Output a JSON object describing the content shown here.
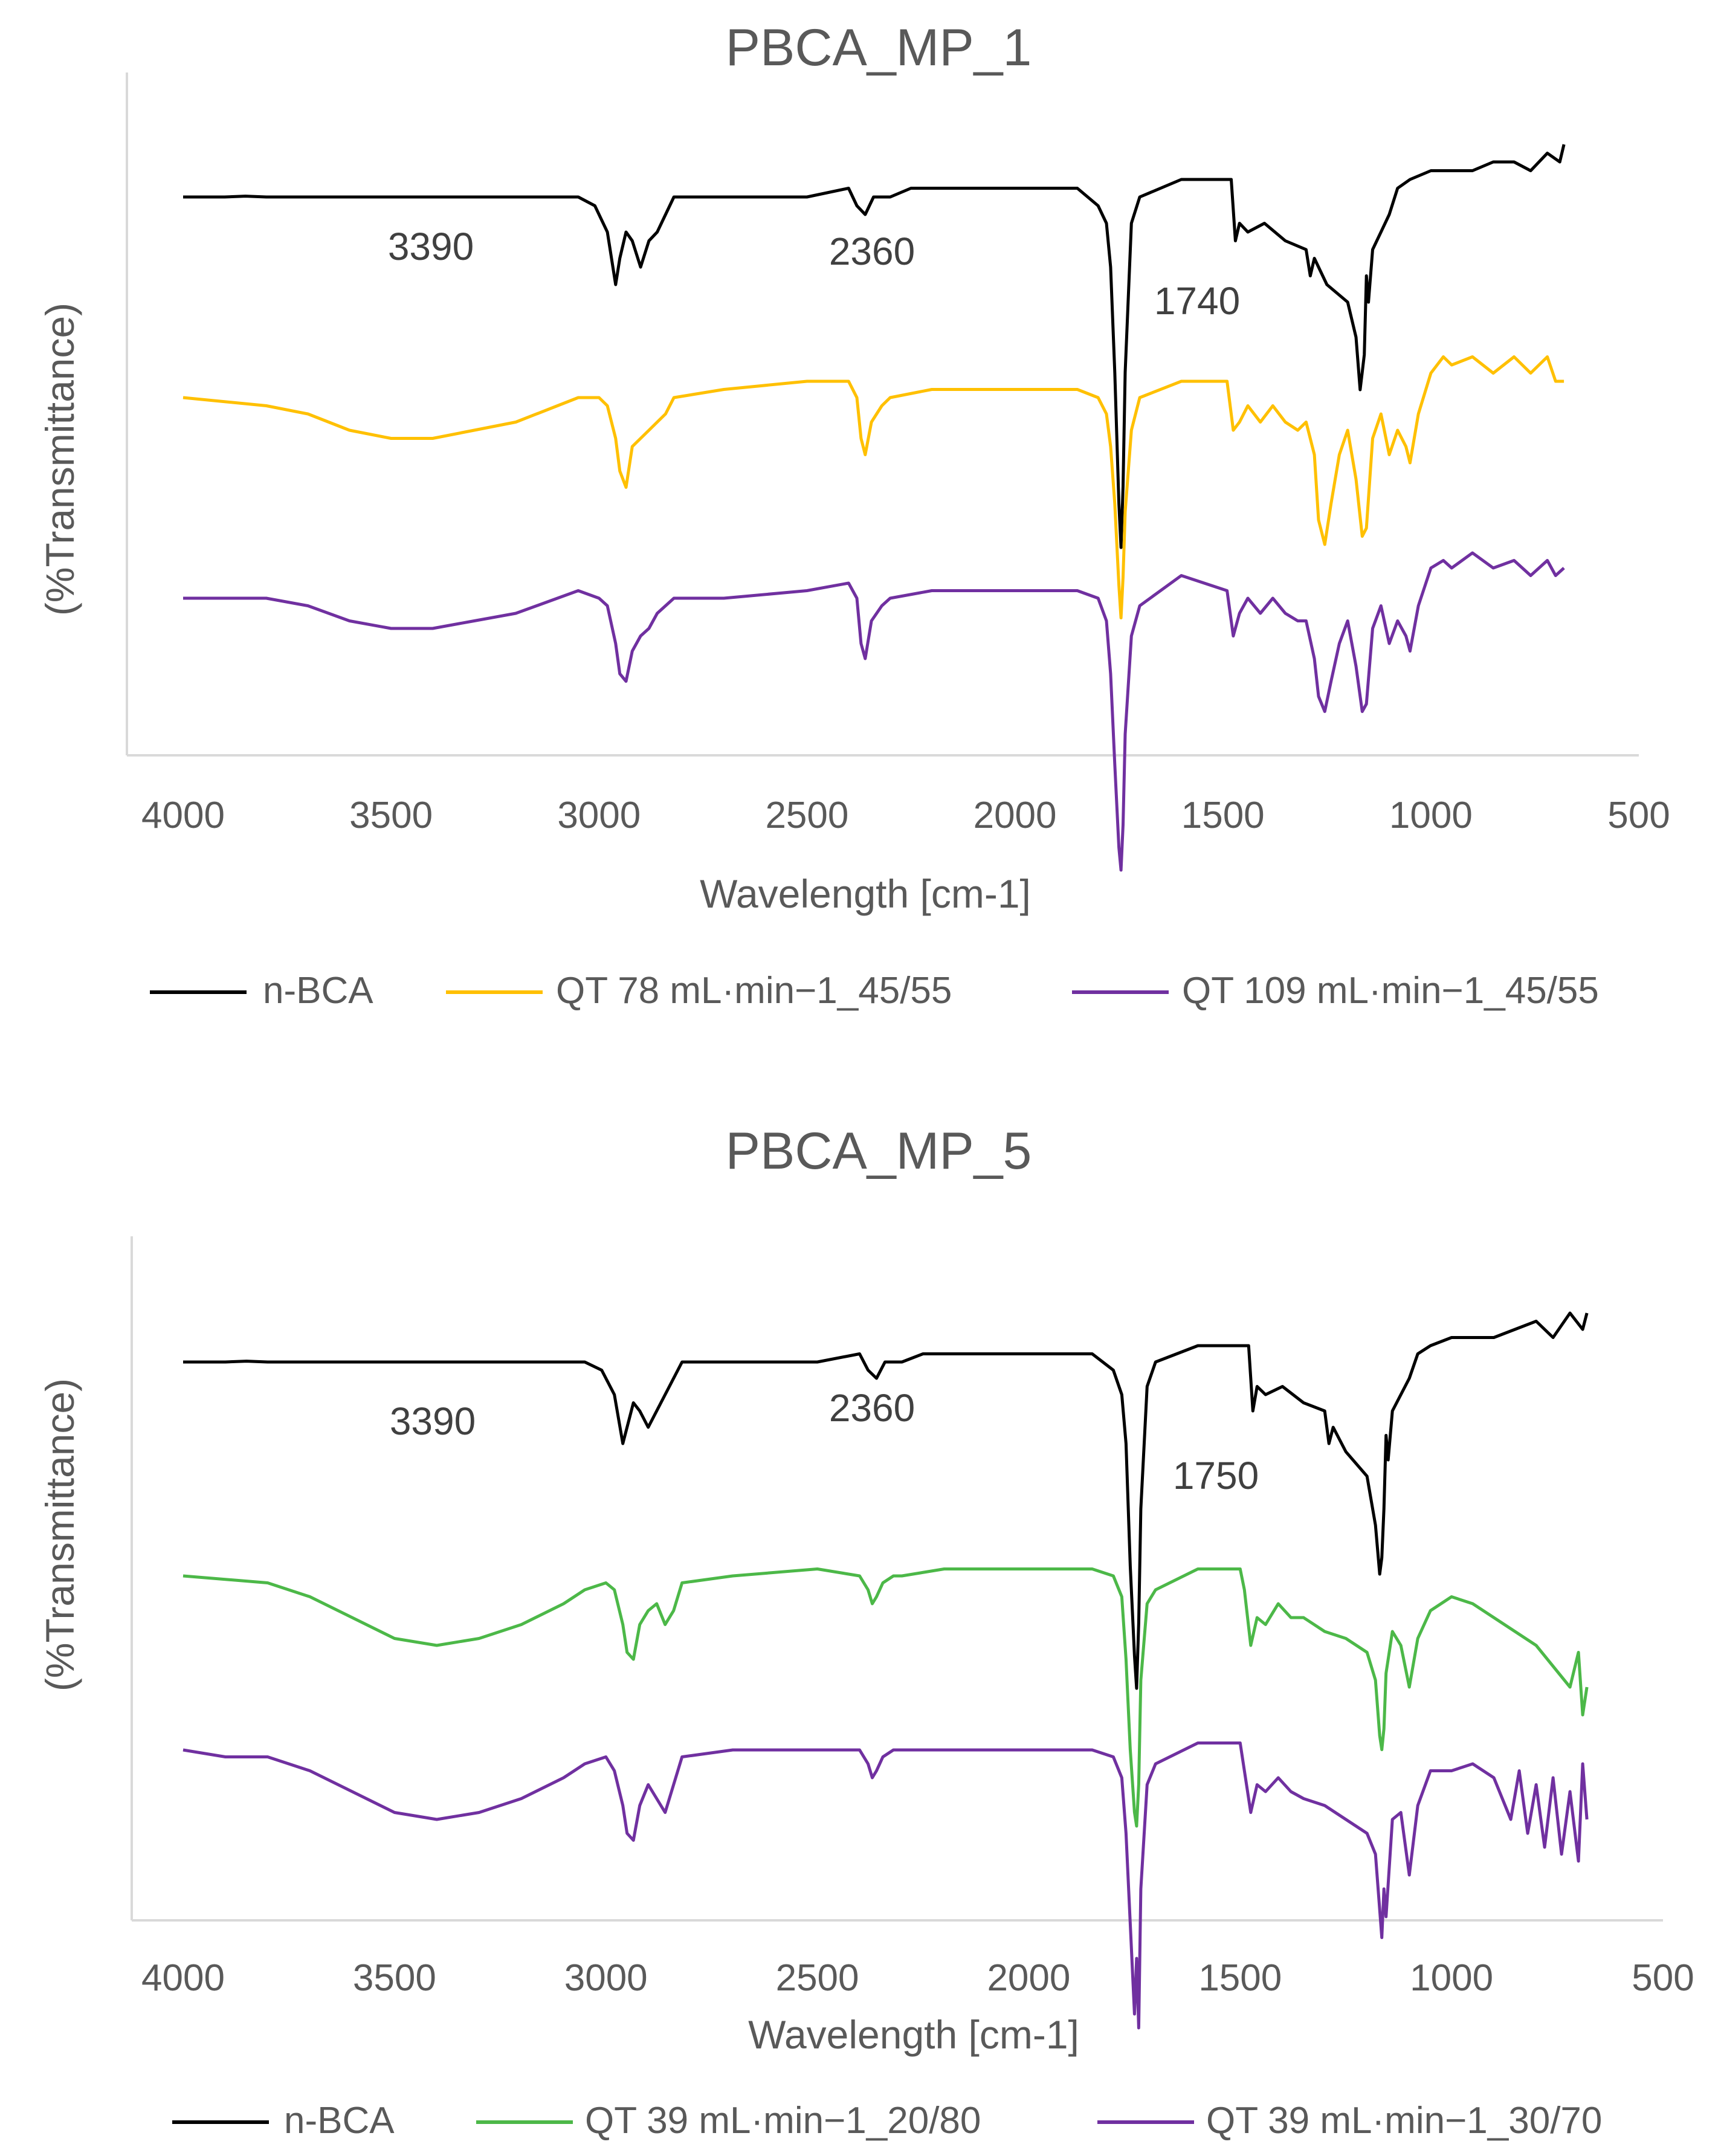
{
  "chart_data": [
    {
      "type": "line",
      "title": "PBCA_MP_1",
      "xlabel": "Wavelength [cm-1]",
      "ylabel": "(%Transmittance)",
      "xlim": [
        4000,
        500
      ],
      "xticks": [
        "4000",
        "3500",
        "3000",
        "2500",
        "2000",
        "1500",
        "1000",
        "500"
      ],
      "annotations": [
        {
          "text": "3390",
          "x": 3390
        },
        {
          "text": "2360",
          "x": 2360
        },
        {
          "text": "1740",
          "x": 1740
        }
      ],
      "series": [
        {
          "name": "n-BCA",
          "color": "#000000",
          "x": [
            4000,
            3900,
            3850,
            3800,
            3700,
            3500,
            3200,
            3050,
            3010,
            2980,
            2960,
            2950,
            2935,
            2920,
            2900,
            2880,
            2860,
            2840,
            2820,
            2700,
            2500,
            2400,
            2380,
            2360,
            2340,
            2300,
            2250,
            2200,
            2000,
            1850,
            1800,
            1780,
            1770,
            1760,
            1750,
            1745,
            1740,
            1735,
            1720,
            1700,
            1600,
            1480,
            1470,
            1460,
            1440,
            1400,
            1350,
            1300,
            1290,
            1280,
            1250,
            1200,
            1180,
            1170,
            1165,
            1160,
            1155,
            1150,
            1140,
            1120,
            1100,
            1080,
            1050,
            1000,
            950,
            900,
            850,
            800,
            760,
            720,
            690,
            680
          ],
          "y": [
            0,
            0,
            0.1,
            0,
            0,
            0,
            0,
            0,
            -1,
            -4,
            -10,
            -7,
            -4,
            -5,
            -8,
            -5,
            -4,
            -2,
            0,
            0,
            0,
            1,
            -1,
            -2,
            0,
            0,
            1,
            1,
            1,
            1,
            -1,
            -3,
            -8,
            -20,
            -35,
            -40,
            -33,
            -20,
            -3,
            0,
            2,
            2,
            -5,
            -3,
            -4,
            -3,
            -5,
            -6,
            -9,
            -7,
            -10,
            -12,
            -16,
            -22,
            -20,
            -18,
            -9,
            -12,
            -6,
            -4,
            -2,
            1,
            2,
            3,
            3,
            3,
            4,
            4,
            3,
            5,
            4,
            6
          ]
        },
        {
          "name": "QT 78  mL·min−1_45/55",
          "color": "#FFC000",
          "x": [
            4000,
            3800,
            3700,
            3600,
            3500,
            3400,
            3300,
            3200,
            3100,
            3050,
            3000,
            2980,
            2960,
            2950,
            2935,
            2920,
            2900,
            2880,
            2860,
            2840,
            2820,
            2700,
            2500,
            2400,
            2380,
            2370,
            2360,
            2345,
            2320,
            2300,
            2200,
            2000,
            1850,
            1800,
            1780,
            1770,
            1760,
            1750,
            1745,
            1740,
            1735,
            1720,
            1700,
            1600,
            1490,
            1475,
            1460,
            1440,
            1410,
            1380,
            1350,
            1320,
            1300,
            1280,
            1270,
            1255,
            1240,
            1220,
            1200,
            1180,
            1165,
            1155,
            1140,
            1120,
            1100,
            1080,
            1060,
            1050,
            1030,
            1000,
            970,
            950,
            900,
            850,
            800,
            760,
            720,
            700,
            680
          ],
          "y": [
            0,
            -1,
            -2,
            -4,
            -5,
            -5,
            -4,
            -3,
            -1,
            0,
            0,
            -1,
            -5,
            -9,
            -11,
            -6,
            -5,
            -4,
            -3,
            -2,
            0,
            1,
            2,
            2,
            0,
            -5,
            -7,
            -3,
            -1,
            0,
            1,
            1,
            1,
            0,
            -2,
            -6,
            -13,
            -23,
            -27,
            -22,
            -14,
            -4,
            0,
            2,
            2,
            -4,
            -3,
            -1,
            -3,
            -1,
            -3,
            -4,
            -3,
            -7,
            -15,
            -18,
            -13,
            -7,
            -4,
            -10,
            -17,
            -16,
            -5,
            -2,
            -7,
            -4,
            -6,
            -8,
            -2,
            3,
            5,
            4,
            5,
            3,
            5,
            3,
            5,
            2,
            2
          ]
        },
        {
          "name": "QT 109  mL·min−1_45/55",
          "color": "#7030A0",
          "x": [
            4000,
            3800,
            3700,
            3600,
            3500,
            3400,
            3300,
            3200,
            3100,
            3050,
            3000,
            2980,
            2960,
            2950,
            2935,
            2920,
            2900,
            2880,
            2860,
            2840,
            2820,
            2700,
            2500,
            2400,
            2380,
            2370,
            2360,
            2345,
            2320,
            2300,
            2200,
            2000,
            1850,
            1800,
            1780,
            1770,
            1760,
            1750,
            1745,
            1740,
            1735,
            1720,
            1700,
            1600,
            1490,
            1475,
            1460,
            1440,
            1410,
            1380,
            1350,
            1320,
            1300,
            1280,
            1270,
            1255,
            1240,
            1220,
            1200,
            1180,
            1165,
            1155,
            1140,
            1120,
            1100,
            1080,
            1060,
            1050,
            1030,
            1000,
            970,
            950,
            900,
            850,
            800,
            760,
            720,
            700,
            680
          ],
          "y": [
            0,
            0,
            -1,
            -3,
            -4,
            -4,
            -3,
            -2,
            0,
            1,
            0,
            -1,
            -6,
            -10,
            -11,
            -7,
            -5,
            -4,
            -2,
            -1,
            0,
            0,
            1,
            2,
            0,
            -6,
            -8,
            -3,
            -1,
            0,
            1,
            1,
            1,
            0,
            -3,
            -10,
            -22,
            -33,
            -36,
            -30,
            -18,
            -5,
            -1,
            3,
            1,
            -5,
            -2,
            0,
            -2,
            0,
            -2,
            -3,
            -3,
            -8,
            -13,
            -15,
            -11,
            -6,
            -3,
            -9,
            -15,
            -14,
            -4,
            -1,
            -6,
            -3,
            -5,
            -7,
            -1,
            4,
            5,
            4,
            6,
            4,
            5,
            3,
            5,
            3,
            4
          ]
        }
      ],
      "legend": "bottom"
    },
    {
      "type": "line",
      "title": "PBCA_MP_5",
      "xlabel": "Wavelength [cm-1]",
      "ylabel": "(%Transmittance)",
      "xlim": [
        4000,
        500
      ],
      "xticks": [
        "4000",
        "3500",
        "3000",
        "2500",
        "2000",
        "1500",
        "1000",
        "500"
      ],
      "annotations": [
        {
          "text": "3390",
          "x": 3390
        },
        {
          "text": "2360",
          "x": 2360
        },
        {
          "text": "1750",
          "x": 1750
        }
      ],
      "series": [
        {
          "name": "n-BCA",
          "color": "#000000",
          "x": [
            4000,
            3900,
            3850,
            3800,
            3700,
            3500,
            3200,
            3050,
            3010,
            2980,
            2960,
            2950,
            2935,
            2920,
            2900,
            2880,
            2860,
            2840,
            2820,
            2700,
            2500,
            2400,
            2380,
            2360,
            2340,
            2300,
            2250,
            2200,
            2000,
            1850,
            1800,
            1780,
            1770,
            1760,
            1750,
            1745,
            1740,
            1735,
            1720,
            1700,
            1600,
            1480,
            1470,
            1460,
            1440,
            1400,
            1350,
            1300,
            1290,
            1280,
            1250,
            1200,
            1180,
            1170,
            1165,
            1160,
            1155,
            1150,
            1140,
            1120,
            1100,
            1080,
            1050,
            1000,
            950,
            900,
            850,
            800,
            760,
            720,
            690,
            680
          ],
          "y": [
            0,
            0,
            0.1,
            0,
            0,
            0,
            0,
            0,
            -1,
            -4,
            -10,
            -8,
            -5,
            -6,
            -8,
            -6,
            -4,
            -2,
            0,
            0,
            0,
            1,
            -1,
            -2,
            0,
            0,
            1,
            1,
            1,
            1,
            -1,
            -4,
            -10,
            -25,
            -36,
            -40,
            -32,
            -18,
            -3,
            0,
            2,
            2,
            -6,
            -3,
            -4,
            -3,
            -5,
            -6,
            -10,
            -8,
            -11,
            -14,
            -20,
            -26,
            -24,
            -18,
            -9,
            -12,
            -6,
            -4,
            -2,
            1,
            2,
            3,
            3,
            3,
            4,
            5,
            3,
            6,
            4,
            6
          ]
        },
        {
          "name": "QT 39 mL·min−1_20/80",
          "color": "#4CB848",
          "x": [
            4000,
            3800,
            3700,
            3600,
            3500,
            3400,
            3300,
            3200,
            3100,
            3050,
            3000,
            2980,
            2960,
            2950,
            2935,
            2920,
            2900,
            2880,
            2860,
            2840,
            2820,
            2700,
            2500,
            2400,
            2380,
            2370,
            2360,
            2345,
            2320,
            2300,
            2200,
            2000,
            1850,
            1800,
            1780,
            1770,
            1760,
            1750,
            1745,
            1740,
            1735,
            1720,
            1700,
            1600,
            1500,
            1490,
            1475,
            1460,
            1440,
            1410,
            1380,
            1350,
            1300,
            1250,
            1200,
            1180,
            1170,
            1165,
            1160,
            1155,
            1140,
            1120,
            1100,
            1080,
            1050,
            1000,
            950,
            900,
            850,
            800,
            760,
            720,
            700,
            690,
            680
          ],
          "y": [
            0,
            -1,
            -3,
            -6,
            -9,
            -10,
            -9,
            -7,
            -4,
            -2,
            -1,
            -2,
            -7,
            -11,
            -12,
            -7,
            -5,
            -4,
            -7,
            -5,
            -1,
            0,
            1,
            0,
            -2,
            -4,
            -3,
            -1,
            0,
            0,
            1,
            1,
            1,
            0,
            -3,
            -12,
            -25,
            -34,
            -36,
            -30,
            -15,
            -4,
            -2,
            1,
            1,
            -2,
            -10,
            -6,
            -7,
            -4,
            -6,
            -6,
            -8,
            -9,
            -11,
            -15,
            -23,
            -25,
            -22,
            -14,
            -8,
            -10,
            -16,
            -9,
            -5,
            -3,
            -4,
            -6,
            -8,
            -10,
            -13,
            -16,
            -11,
            -20,
            -16
          ]
        },
        {
          "name": "QT 39 mL·min−1_30/70",
          "color": "#7030A0",
          "x": [
            4000,
            3900,
            3800,
            3750,
            3700,
            3600,
            3500,
            3400,
            3300,
            3200,
            3100,
            3050,
            3000,
            2980,
            2960,
            2950,
            2935,
            2920,
            2900,
            2880,
            2860,
            2840,
            2820,
            2700,
            2500,
            2400,
            2380,
            2370,
            2360,
            2345,
            2320,
            2300,
            2200,
            2000,
            1850,
            1800,
            1780,
            1770,
            1760,
            1750,
            1745,
            1740,
            1735,
            1720,
            1700,
            1600,
            1500,
            1490,
            1475,
            1460,
            1440,
            1410,
            1380,
            1350,
            1300,
            1250,
            1200,
            1180,
            1170,
            1165,
            1160,
            1155,
            1140,
            1120,
            1100,
            1080,
            1050,
            1000,
            950,
            900,
            860,
            840,
            820,
            800,
            780,
            760,
            740,
            720,
            700,
            690,
            680
          ],
          "y": [
            0,
            -1,
            -1,
            -2,
            -3,
            -6,
            -9,
            -10,
            -9,
            -7,
            -4,
            -2,
            -1,
            -3,
            -8,
            -12,
            -13,
            -8,
            -5,
            -7,
            -9,
            -5,
            -1,
            0,
            0,
            0,
            -2,
            -4,
            -3,
            -1,
            0,
            0,
            0,
            0,
            0,
            -1,
            -4,
            -12,
            -25,
            -38,
            -30,
            -40,
            -20,
            -5,
            -2,
            1,
            1,
            -3,
            -9,
            -5,
            -6,
            -4,
            -6,
            -7,
            -8,
            -10,
            -12,
            -15,
            -23,
            -27,
            -20,
            -24,
            -10,
            -9,
            -18,
            -8,
            -3,
            -3,
            -2,
            -4,
            -10,
            -3,
            -12,
            -5,
            -14,
            -4,
            -15,
            -6,
            -16,
            -2,
            -10
          ]
        }
      ],
      "legend": "bottom"
    }
  ]
}
